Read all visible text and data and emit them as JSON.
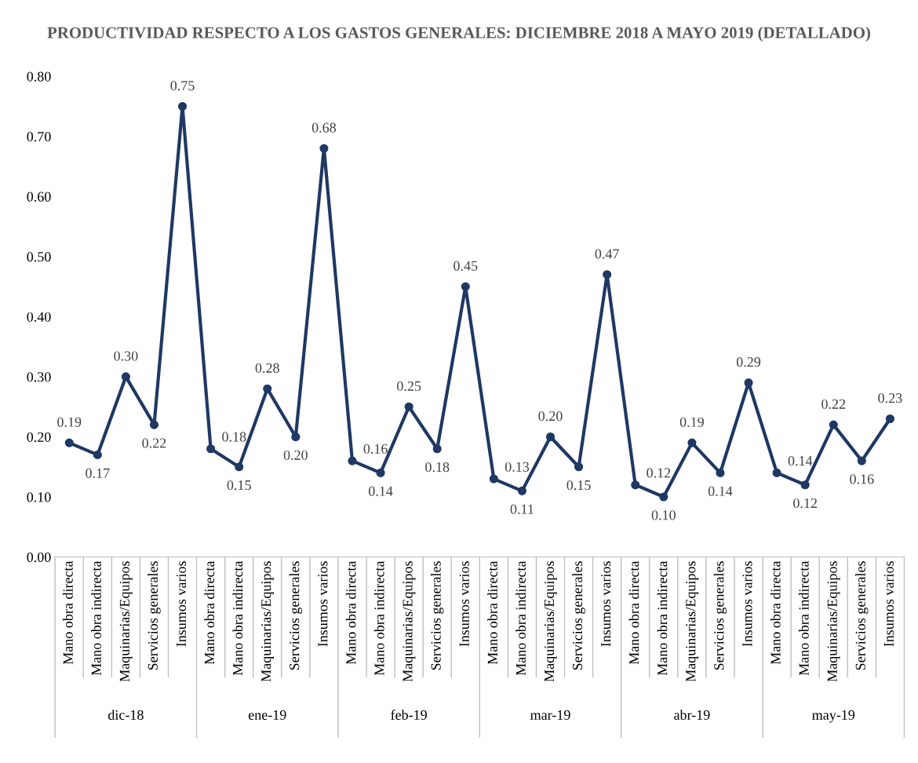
{
  "chart_data": {
    "type": "line",
    "title": "PRODUCTIVIDAD RESPECTO A LOS GASTOS GENERALES: DICIEMBRE 2018 A MAYO 2019 (DETALLADO)",
    "categories": [
      "Mano obra directa",
      "Mano obra indirecta",
      "Maquinarias/Equipos",
      "Servicios generales",
      "Insumos varios",
      "Mano obra directa",
      "Mano obra indirecta",
      "Maquinarias/Equipos",
      "Servicios generales",
      "Insumos varios",
      "Mano obra directa",
      "Mano obra indirecta",
      "Maquinarias/Equipos",
      "Servicios generales",
      "Insumos varios",
      "Mano obra directa",
      "Mano obra indirecta",
      "Maquinarias/Equipos",
      "Servicios generales",
      "Insumos varios",
      "Mano obra directa",
      "Mano obra indirecta",
      "Maquinarias/Equipos",
      "Servicios generales",
      "Insumos varios",
      "Mano obra directa",
      "Mano obra indirecta",
      "Maquinarias/Equipos",
      "Servicios generales",
      "Insumos varios"
    ],
    "annotations": [
      "dic-18",
      "ene-19",
      "feb-19",
      "mar-19",
      "abr-19",
      "may-19"
    ],
    "series": [
      {
        "color": "#1f3864",
        "values": [
          0.19,
          0.17,
          0.3,
          0.22,
          0.75,
          0.18,
          0.15,
          0.28,
          0.2,
          0.68,
          0.16,
          0.14,
          0.25,
          0.18,
          0.45,
          0.13,
          0.11,
          0.2,
          0.15,
          0.47,
          0.12,
          0.1,
          0.19,
          0.14,
          0.29,
          0.14,
          0.12,
          0.22,
          0.16,
          0.23
        ],
        "value_labels": [
          "0.19",
          "0.17",
          "0.30",
          "0.22",
          "0.75",
          "0.18",
          "0.15",
          "0.28",
          "0.20",
          "0.68",
          "0.16",
          "0.14",
          "0.25",
          "0.18",
          "0.45",
          "0.13",
          "0.11",
          "0.20",
          "0.15",
          "0.47",
          "0.12",
          "0.10",
          "0.19",
          "0.14",
          "0.29",
          "0.14",
          "0.12",
          "0.22",
          "0.16",
          "0.23"
        ]
      }
    ],
    "ylim": [
      0,
      0.8
    ],
    "yticks": [
      {
        "value": 0,
        "label": "0.00"
      },
      {
        "value": 0.1,
        "label": "0.10"
      },
      {
        "value": 0.2,
        "label": "0.20"
      },
      {
        "value": 0.3,
        "label": "0.30"
      },
      {
        "value": 0.4,
        "label": "0.40"
      },
      {
        "value": 0.5,
        "label": "0.50"
      },
      {
        "value": 0.6,
        "label": "0.60"
      },
      {
        "value": 0.7,
        "label": "0.70"
      },
      {
        "value": 0.8,
        "label": "0.80"
      }
    ],
    "marker": "circle",
    "grid": false,
    "legend": false
  }
}
